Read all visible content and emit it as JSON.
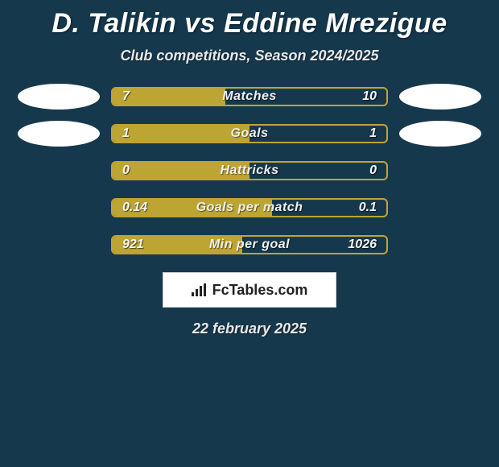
{
  "header": {
    "title": "D. Talikin vs Eddine Mrezigue",
    "subtitle": "Club competitions, Season 2024/2025"
  },
  "colors": {
    "background": "#16384c",
    "bar_fill": "#bda533",
    "bar_border": "#bda533",
    "text": "#ffffff",
    "avatar": "#ffffff"
  },
  "stats": [
    {
      "label": "Matches",
      "left_value": "7",
      "right_value": "10",
      "left_pct": 41.2,
      "show_avatars": true
    },
    {
      "label": "Goals",
      "left_value": "1",
      "right_value": "1",
      "left_pct": 50.0,
      "show_avatars": true
    },
    {
      "label": "Hattricks",
      "left_value": "0",
      "right_value": "0",
      "left_pct": 50.0,
      "show_avatars": false
    },
    {
      "label": "Goals per match",
      "left_value": "0.14",
      "right_value": "0.1",
      "left_pct": 58.3,
      "show_avatars": false
    },
    {
      "label": "Min per goal",
      "left_value": "921",
      "right_value": "1026",
      "left_pct": 47.3,
      "show_avatars": false
    }
  ],
  "logo": {
    "text": "FcTables.com"
  },
  "footer": {
    "date": "22 february 2025"
  }
}
